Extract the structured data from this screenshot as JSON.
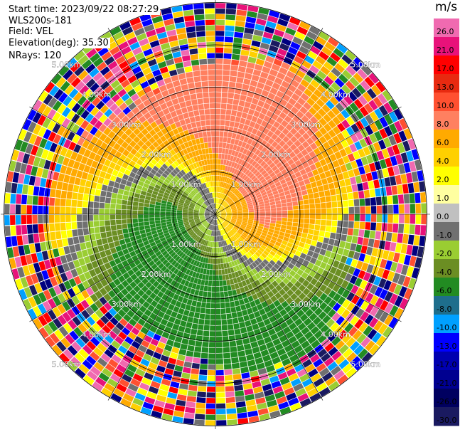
{
  "info": {
    "start_time": "Start time: 2023/09/22 08:27:29",
    "instrument": "WLS200s-181",
    "field": "Field: VEL",
    "elevation": "Elevation(deg): 35.30",
    "nrays": "NRays: 120"
  },
  "chart_data": {
    "type": "ppi",
    "field": "VEL",
    "units": "m/s",
    "range_rings_km": [
      1,
      2,
      3,
      4,
      5
    ],
    "range_labels": [
      "1.00km",
      "2.00km",
      "3.00km",
      "4.00km",
      "5.00km"
    ],
    "max_range_km": 5,
    "nrays": 120,
    "colorbar": {
      "label": "m/s",
      "ticks": [
        "26.0",
        "21.0",
        "17.0",
        "13.0",
        "10.0",
        "8.0",
        "6.0",
        "4.0",
        "2.0",
        "1.0",
        "0.0",
        "-1.0",
        "-2.0",
        "-4.0",
        "-6.0",
        "-8.0",
        "-10.0",
        "-13.0",
        "-17.0",
        "-21.0",
        "-26.0",
        "-30.0"
      ],
      "colors": [
        "#f06ab0",
        "#e8127a",
        "#ff0000",
        "#e82a10",
        "#ff5030",
        "#ff8060",
        "#ffaa00",
        "#ffd000",
        "#ffff00",
        "#ffffa0",
        "#c0c0c0",
        "#707070",
        "#9acd32",
        "#6b8e23",
        "#228b22",
        "#1e6e8c",
        "#00a0ff",
        "#0000ff",
        "#0000b0",
        "#000090",
        "#000060",
        "#1a1a60"
      ]
    }
  }
}
